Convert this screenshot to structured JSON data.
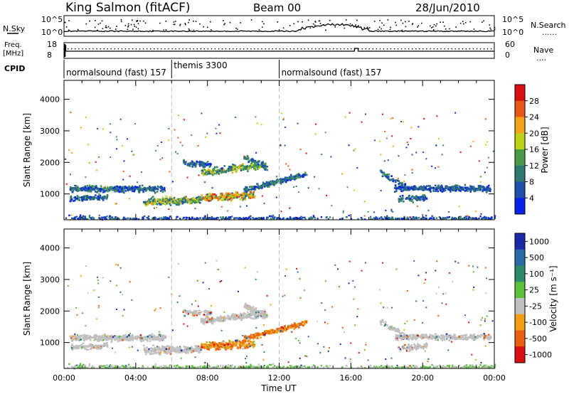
{
  "header": {
    "station": "King Salmon (fitACF)",
    "beam": "Beam 00",
    "date": "28/Jun/2010"
  },
  "panel_labels": {
    "nsky": "N.Sky",
    "nsearch": "N.Search",
    "freq_line1": "Freq.",
    "freq_line2": "[MHz]",
    "nave": "Nave",
    "cpid": "CPID",
    "nsearch_dots": "......",
    "nave_dots": "...."
  },
  "cpid_segments": [
    {
      "label": "normalsound (fast) 157",
      "start_hour": 0
    },
    {
      "label": "themis 3300",
      "start_hour": 6
    },
    {
      "label": "normalsound (fast) 157",
      "start_hour": 12
    }
  ],
  "chart_data": [
    {
      "type": "line",
      "name": "noise",
      "left_ticks": [
        "10^5",
        "10^0"
      ],
      "right_ticks": [
        "10^5",
        "10^0"
      ]
    },
    {
      "type": "line",
      "name": "frequency",
      "left_ticks": [
        "18",
        "8"
      ],
      "right_ticks": [
        "60",
        "0"
      ]
    },
    {
      "type": "heatmap",
      "name": "power",
      "ylabel": "Slant Range [km]",
      "yticks": [
        1000,
        2000,
        3000,
        4000
      ],
      "ylim": [
        180,
        4600
      ],
      "xlim_hours": [
        0,
        24
      ],
      "colorbar_label": "Power [dB]",
      "colorbar_ticks": [
        "4",
        "8",
        "12",
        "16",
        "20",
        "24",
        "28"
      ],
      "colors": [
        "#0a23e8",
        "#1f4fa8",
        "#2e7a72",
        "#4a9a4c",
        "#bcd216",
        "#f2a31a",
        "#e85818",
        "#d91010"
      ]
    },
    {
      "type": "heatmap",
      "name": "velocity",
      "ylabel": "Slant Range [km]",
      "yticks": [
        1000,
        2000,
        3000,
        4000
      ],
      "ylim": [
        180,
        4600
      ],
      "xlim_hours": [
        0,
        24
      ],
      "xlabel": "Time UT",
      "xticks": [
        "00:00",
        "04:00",
        "08:00",
        "12:00",
        "16:00",
        "20:00",
        "00:00"
      ],
      "colorbar_label": "Velocity [m s⁻¹]",
      "colorbar_ticks": [
        "1000",
        "500",
        "100",
        "25",
        "-25",
        "-100",
        "-500",
        "-1000"
      ],
      "colors": [
        "#1a2aa8",
        "#2a6aa8",
        "#2e8a6a",
        "#5cc03a",
        "#c0c0c0",
        "#f0a010",
        "#e86010",
        "#d81010"
      ]
    }
  ]
}
